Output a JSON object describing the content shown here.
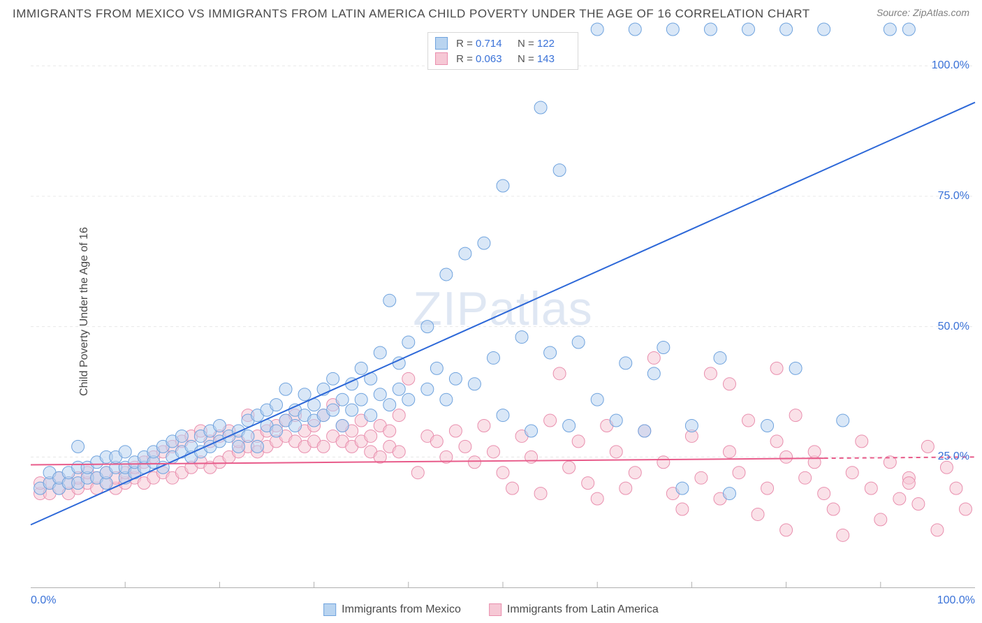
{
  "title": "IMMIGRANTS FROM MEXICO VS IMMIGRANTS FROM LATIN AMERICA CHILD POVERTY UNDER THE AGE OF 16 CORRELATION CHART",
  "source_prefix": "Source: ",
  "source_name": "ZipAtlas.com",
  "ylabel": "Child Poverty Under the Age of 16",
  "watermark": "ZIPatlas",
  "chart": {
    "type": "scatter",
    "xlim": [
      0,
      100
    ],
    "ylim": [
      0,
      107
    ],
    "y_ticks": [
      25,
      50,
      75,
      100
    ],
    "y_tick_labels": [
      "25.0%",
      "50.0%",
      "75.0%",
      "100.0%"
    ],
    "x_edge_labels": [
      "0.0%",
      "100.0%"
    ],
    "x_minor_ticks": [
      10,
      20,
      30,
      40,
      50,
      60,
      70,
      80,
      90
    ],
    "grid_color": "#e8e8e8",
    "axis_color": "#b0b0b0",
    "background_color": "#ffffff",
    "marker_radius": 9,
    "marker_opacity": 0.55,
    "line_width": 2,
    "series": [
      {
        "name": "Immigrants from Mexico",
        "fill": "#b9d4f0",
        "stroke": "#6fa3de",
        "line_color": "#2d68d8",
        "r": "0.714",
        "n": "122",
        "trend": {
          "x1": 0,
          "y1": 12,
          "x2": 100,
          "y2": 93
        },
        "points": [
          [
            1,
            19
          ],
          [
            2,
            20
          ],
          [
            2,
            22
          ],
          [
            3,
            19
          ],
          [
            3,
            21
          ],
          [
            4,
            20
          ],
          [
            4,
            22
          ],
          [
            5,
            20
          ],
          [
            5,
            23
          ],
          [
            5,
            27
          ],
          [
            6,
            21
          ],
          [
            6,
            23
          ],
          [
            7,
            21
          ],
          [
            7,
            24
          ],
          [
            8,
            20
          ],
          [
            8,
            22
          ],
          [
            8,
            25
          ],
          [
            9,
            23
          ],
          [
            9,
            25
          ],
          [
            10,
            21
          ],
          [
            10,
            23
          ],
          [
            10,
            26
          ],
          [
            11,
            22
          ],
          [
            11,
            24
          ],
          [
            12,
            23
          ],
          [
            12,
            25
          ],
          [
            13,
            24
          ],
          [
            13,
            26
          ],
          [
            14,
            23
          ],
          [
            14,
            27
          ],
          [
            15,
            25
          ],
          [
            15,
            28
          ],
          [
            16,
            26
          ],
          [
            16,
            29
          ],
          [
            17,
            25
          ],
          [
            17,
            27
          ],
          [
            18,
            26
          ],
          [
            18,
            29
          ],
          [
            19,
            27
          ],
          [
            19,
            30
          ],
          [
            20,
            28
          ],
          [
            20,
            31
          ],
          [
            21,
            29
          ],
          [
            22,
            27
          ],
          [
            22,
            30
          ],
          [
            23,
            29
          ],
          [
            23,
            32
          ],
          [
            24,
            27
          ],
          [
            24,
            33
          ],
          [
            25,
            31
          ],
          [
            25,
            34
          ],
          [
            26,
            30
          ],
          [
            26,
            35
          ],
          [
            27,
            32
          ],
          [
            27,
            38
          ],
          [
            28,
            31
          ],
          [
            28,
            34
          ],
          [
            29,
            33
          ],
          [
            29,
            37
          ],
          [
            30,
            32
          ],
          [
            30,
            35
          ],
          [
            31,
            33
          ],
          [
            31,
            38
          ],
          [
            32,
            34
          ],
          [
            32,
            40
          ],
          [
            33,
            31
          ],
          [
            33,
            36
          ],
          [
            34,
            34
          ],
          [
            34,
            39
          ],
          [
            35,
            36
          ],
          [
            35,
            42
          ],
          [
            36,
            33
          ],
          [
            36,
            40
          ],
          [
            37,
            37
          ],
          [
            37,
            45
          ],
          [
            38,
            35
          ],
          [
            38,
            55
          ],
          [
            39,
            38
          ],
          [
            39,
            43
          ],
          [
            40,
            36
          ],
          [
            40,
            47
          ],
          [
            42,
            38
          ],
          [
            42,
            50
          ],
          [
            43,
            42
          ],
          [
            44,
            36
          ],
          [
            44,
            60
          ],
          [
            45,
            40
          ],
          [
            46,
            64
          ],
          [
            47,
            39
          ],
          [
            48,
            66
          ],
          [
            49,
            44
          ],
          [
            50,
            33
          ],
          [
            50,
            77
          ],
          [
            52,
            48
          ],
          [
            53,
            30
          ],
          [
            54,
            92
          ],
          [
            55,
            45
          ],
          [
            56,
            80
          ],
          [
            57,
            31
          ],
          [
            58,
            47
          ],
          [
            60,
            36
          ],
          [
            60,
            107
          ],
          [
            62,
            32
          ],
          [
            63,
            43
          ],
          [
            64,
            107
          ],
          [
            65,
            30
          ],
          [
            66,
            41
          ],
          [
            67,
            46
          ],
          [
            68,
            107
          ],
          [
            69,
            19
          ],
          [
            70,
            31
          ],
          [
            72,
            107
          ],
          [
            73,
            44
          ],
          [
            74,
            18
          ],
          [
            76,
            107
          ],
          [
            78,
            31
          ],
          [
            80,
            107
          ],
          [
            81,
            42
          ],
          [
            84,
            107
          ],
          [
            86,
            32
          ],
          [
            91,
            107
          ],
          [
            93,
            107
          ]
        ]
      },
      {
        "name": "Immigrants from Latin America",
        "fill": "#f6c8d5",
        "stroke": "#e98fae",
        "line_color": "#e85b8a",
        "r": "0.063",
        "n": "143",
        "trend": {
          "x1": 0,
          "y1": 23.5,
          "x2": 100,
          "y2": 25
        },
        "trend_dash_after_x": 84,
        "points": [
          [
            1,
            18
          ],
          [
            1,
            20
          ],
          [
            2,
            18
          ],
          [
            2,
            20
          ],
          [
            3,
            19
          ],
          [
            3,
            21
          ],
          [
            4,
            18
          ],
          [
            4,
            20
          ],
          [
            5,
            19
          ],
          [
            5,
            21
          ],
          [
            6,
            20
          ],
          [
            6,
            22
          ],
          [
            7,
            19
          ],
          [
            7,
            21
          ],
          [
            8,
            20
          ],
          [
            8,
            22
          ],
          [
            9,
            19
          ],
          [
            9,
            21
          ],
          [
            10,
            20
          ],
          [
            10,
            22
          ],
          [
            11,
            21
          ],
          [
            11,
            23
          ],
          [
            12,
            20
          ],
          [
            12,
            24
          ],
          [
            13,
            21
          ],
          [
            13,
            25
          ],
          [
            14,
            22
          ],
          [
            14,
            26
          ],
          [
            15,
            21
          ],
          [
            15,
            27
          ],
          [
            16,
            22
          ],
          [
            16,
            28
          ],
          [
            17,
            23
          ],
          [
            17,
            29
          ],
          [
            18,
            24
          ],
          [
            18,
            30
          ],
          [
            19,
            23
          ],
          [
            19,
            28
          ],
          [
            20,
            24
          ],
          [
            20,
            29
          ],
          [
            21,
            25
          ],
          [
            21,
            30
          ],
          [
            22,
            26
          ],
          [
            22,
            28
          ],
          [
            23,
            27
          ],
          [
            23,
            33
          ],
          [
            24,
            26
          ],
          [
            24,
            29
          ],
          [
            25,
            27
          ],
          [
            25,
            30
          ],
          [
            26,
            28
          ],
          [
            26,
            31
          ],
          [
            27,
            29
          ],
          [
            27,
            32
          ],
          [
            28,
            28
          ],
          [
            28,
            33
          ],
          [
            29,
            27
          ],
          [
            29,
            30
          ],
          [
            30,
            28
          ],
          [
            30,
            31
          ],
          [
            31,
            27
          ],
          [
            31,
            33
          ],
          [
            32,
            29
          ],
          [
            32,
            35
          ],
          [
            33,
            28
          ],
          [
            33,
            31
          ],
          [
            34,
            27
          ],
          [
            34,
            30
          ],
          [
            35,
            28
          ],
          [
            35,
            32
          ],
          [
            36,
            26
          ],
          [
            36,
            29
          ],
          [
            37,
            25
          ],
          [
            37,
            31
          ],
          [
            38,
            27
          ],
          [
            38,
            30
          ],
          [
            39,
            26
          ],
          [
            39,
            33
          ],
          [
            40,
            40
          ],
          [
            41,
            22
          ],
          [
            42,
            29
          ],
          [
            43,
            28
          ],
          [
            44,
            25
          ],
          [
            45,
            30
          ],
          [
            46,
            27
          ],
          [
            47,
            24
          ],
          [
            48,
            31
          ],
          [
            49,
            26
          ],
          [
            50,
            22
          ],
          [
            51,
            19
          ],
          [
            52,
            29
          ],
          [
            53,
            25
          ],
          [
            54,
            18
          ],
          [
            55,
            32
          ],
          [
            56,
            41
          ],
          [
            57,
            23
          ],
          [
            58,
            28
          ],
          [
            59,
            20
          ],
          [
            60,
            17
          ],
          [
            61,
            31
          ],
          [
            62,
            26
          ],
          [
            63,
            19
          ],
          [
            64,
            22
          ],
          [
            65,
            30
          ],
          [
            66,
            44
          ],
          [
            67,
            24
          ],
          [
            68,
            18
          ],
          [
            69,
            15
          ],
          [
            70,
            29
          ],
          [
            71,
            21
          ],
          [
            72,
            41
          ],
          [
            73,
            17
          ],
          [
            74,
            26
          ],
          [
            74,
            39
          ],
          [
            75,
            22
          ],
          [
            76,
            32
          ],
          [
            77,
            14
          ],
          [
            78,
            19
          ],
          [
            79,
            28
          ],
          [
            79,
            42
          ],
          [
            80,
            25
          ],
          [
            80,
            11
          ],
          [
            81,
            33
          ],
          [
            82,
            21
          ],
          [
            83,
            24
          ],
          [
            83,
            26
          ],
          [
            84,
            18
          ],
          [
            85,
            15
          ],
          [
            86,
            10
          ],
          [
            87,
            22
          ],
          [
            88,
            28
          ],
          [
            89,
            19
          ],
          [
            90,
            13
          ],
          [
            91,
            24
          ],
          [
            92,
            17
          ],
          [
            93,
            21
          ],
          [
            93,
            20
          ],
          [
            94,
            16
          ],
          [
            95,
            27
          ],
          [
            96,
            11
          ],
          [
            97,
            23
          ],
          [
            98,
            19
          ],
          [
            99,
            15
          ]
        ]
      }
    ]
  },
  "legend_bottom": [
    {
      "swatch": 0,
      "label": "Immigrants from Mexico"
    },
    {
      "swatch": 1,
      "label": "Immigrants from Latin America"
    }
  ]
}
